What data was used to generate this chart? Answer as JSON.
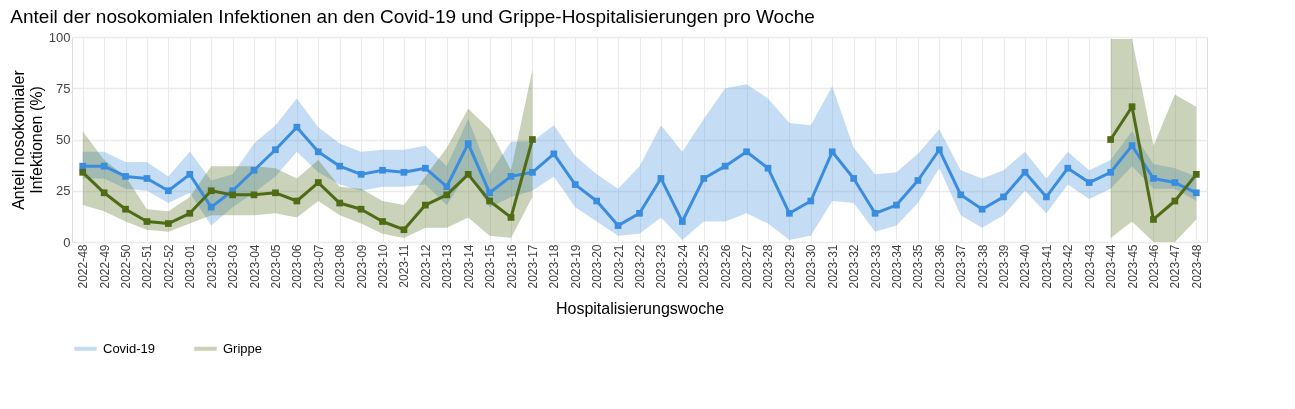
{
  "chart_data": {
    "type": "line",
    "title": "Anteil der nosokomialen Infektionen an den Covid-19 und Grippe-Hospitalisierungen pro Woche",
    "xlabel": "Hospitalisierungswoche",
    "ylabel": "Anteil nosokomialer Infektionen (%)",
    "categories": [
      "2022-48",
      "2022-49",
      "2022-50",
      "2022-51",
      "2022-52",
      "2023-01",
      "2023-02",
      "2023-03",
      "2023-04",
      "2023-05",
      "2023-06",
      "2023-07",
      "2023-08",
      "2023-09",
      "2023-10",
      "2023-11",
      "2023-12",
      "2023-13",
      "2023-14",
      "2023-15",
      "2023-16",
      "2023-17",
      "2023-18",
      "2023-19",
      "2023-20",
      "2023-21",
      "2023-22",
      "2023-23",
      "2023-24",
      "2023-25",
      "2023-26",
      "2023-27",
      "2023-28",
      "2023-29",
      "2023-30",
      "2023-31",
      "2023-32",
      "2023-33",
      "2023-34",
      "2023-35",
      "2023-36",
      "2023-37",
      "2023-38",
      "2023-39",
      "2023-40",
      "2023-41",
      "2023-42",
      "2023-43",
      "2023-44",
      "2023-45",
      "2023-46",
      "2023-47",
      "2023-48"
    ],
    "series": [
      {
        "name": "Covid-19",
        "color": "#3a8dde",
        "values": [
          37,
          37,
          32,
          31,
          25,
          33,
          17,
          25,
          35,
          45,
          56,
          44,
          37,
          33,
          35,
          34,
          36,
          27,
          48,
          24,
          32,
          34,
          43,
          28,
          20,
          8,
          14,
          31,
          10,
          31,
          37,
          44,
          36,
          14,
          20,
          44,
          31,
          14,
          18,
          30,
          45,
          23,
          16,
          22,
          34,
          22,
          36,
          29,
          34,
          47,
          31,
          29,
          24
        ],
        "lower": [
          31,
          31,
          26,
          25,
          19,
          24,
          8,
          17,
          24,
          32,
          44,
          34,
          28,
          25,
          27,
          27,
          28,
          18,
          34,
          17,
          22,
          25,
          32,
          17,
          10,
          3,
          4,
          12,
          1,
          10,
          10,
          14,
          9,
          1,
          3,
          20,
          19,
          5,
          8,
          19,
          36,
          13,
          7,
          13,
          25,
          14,
          28,
          21,
          26,
          37,
          26,
          26,
          20
        ],
        "upper": [
          44,
          44,
          39,
          39,
          32,
          44,
          30,
          33,
          48,
          57,
          70,
          56,
          48,
          44,
          45,
          45,
          47,
          37,
          60,
          33,
          49,
          49,
          57,
          42,
          33,
          26,
          37,
          57,
          44,
          60,
          75,
          77,
          70,
          58,
          57,
          76,
          46,
          33,
          34,
          43,
          55,
          35,
          31,
          35,
          44,
          31,
          44,
          35,
          40,
          54,
          38,
          36,
          32
        ]
      },
      {
        "name": "Grippe",
        "color": "#4f6b16",
        "values": [
          34,
          24,
          16,
          10,
          9,
          14,
          25,
          23,
          23,
          24,
          20,
          29,
          19,
          16,
          10,
          6,
          18,
          23,
          33,
          20,
          12,
          50,
          null,
          null,
          null,
          null,
          null,
          null,
          null,
          null,
          null,
          null,
          null,
          null,
          null,
          null,
          null,
          null,
          null,
          null,
          null,
          null,
          null,
          null,
          null,
          null,
          null,
          null,
          50,
          66,
          11,
          20,
          33
        ],
        "lower": [
          18,
          15,
          10,
          6,
          5,
          9,
          13,
          13,
          13,
          14,
          12,
          20,
          13,
          9,
          4,
          2,
          7,
          7,
          12,
          3,
          2,
          22,
          null,
          null,
          null,
          null,
          null,
          null,
          null,
          null,
          null,
          null,
          null,
          null,
          null,
          null,
          null,
          null,
          null,
          null,
          null,
          null,
          null,
          null,
          null,
          null,
          null,
          null,
          2,
          10,
          0,
          0,
          11
        ],
        "upper": [
          54,
          40,
          32,
          16,
          15,
          22,
          37,
          37,
          37,
          36,
          31,
          40,
          27,
          26,
          20,
          18,
          32,
          46,
          65,
          55,
          35,
          84,
          null,
          null,
          null,
          null,
          null,
          null,
          null,
          null,
          null,
          null,
          null,
          null,
          null,
          null,
          null,
          null,
          null,
          null,
          null,
          null,
          null,
          null,
          null,
          null,
          null,
          null,
          99,
          99,
          47,
          72,
          66
        ]
      }
    ],
    "ylim": [
      0,
      100
    ],
    "yticks": [
      0,
      25,
      50,
      75,
      100
    ],
    "grid": true,
    "legend": "bottom",
    "marker": "square",
    "line_style": "solid"
  }
}
